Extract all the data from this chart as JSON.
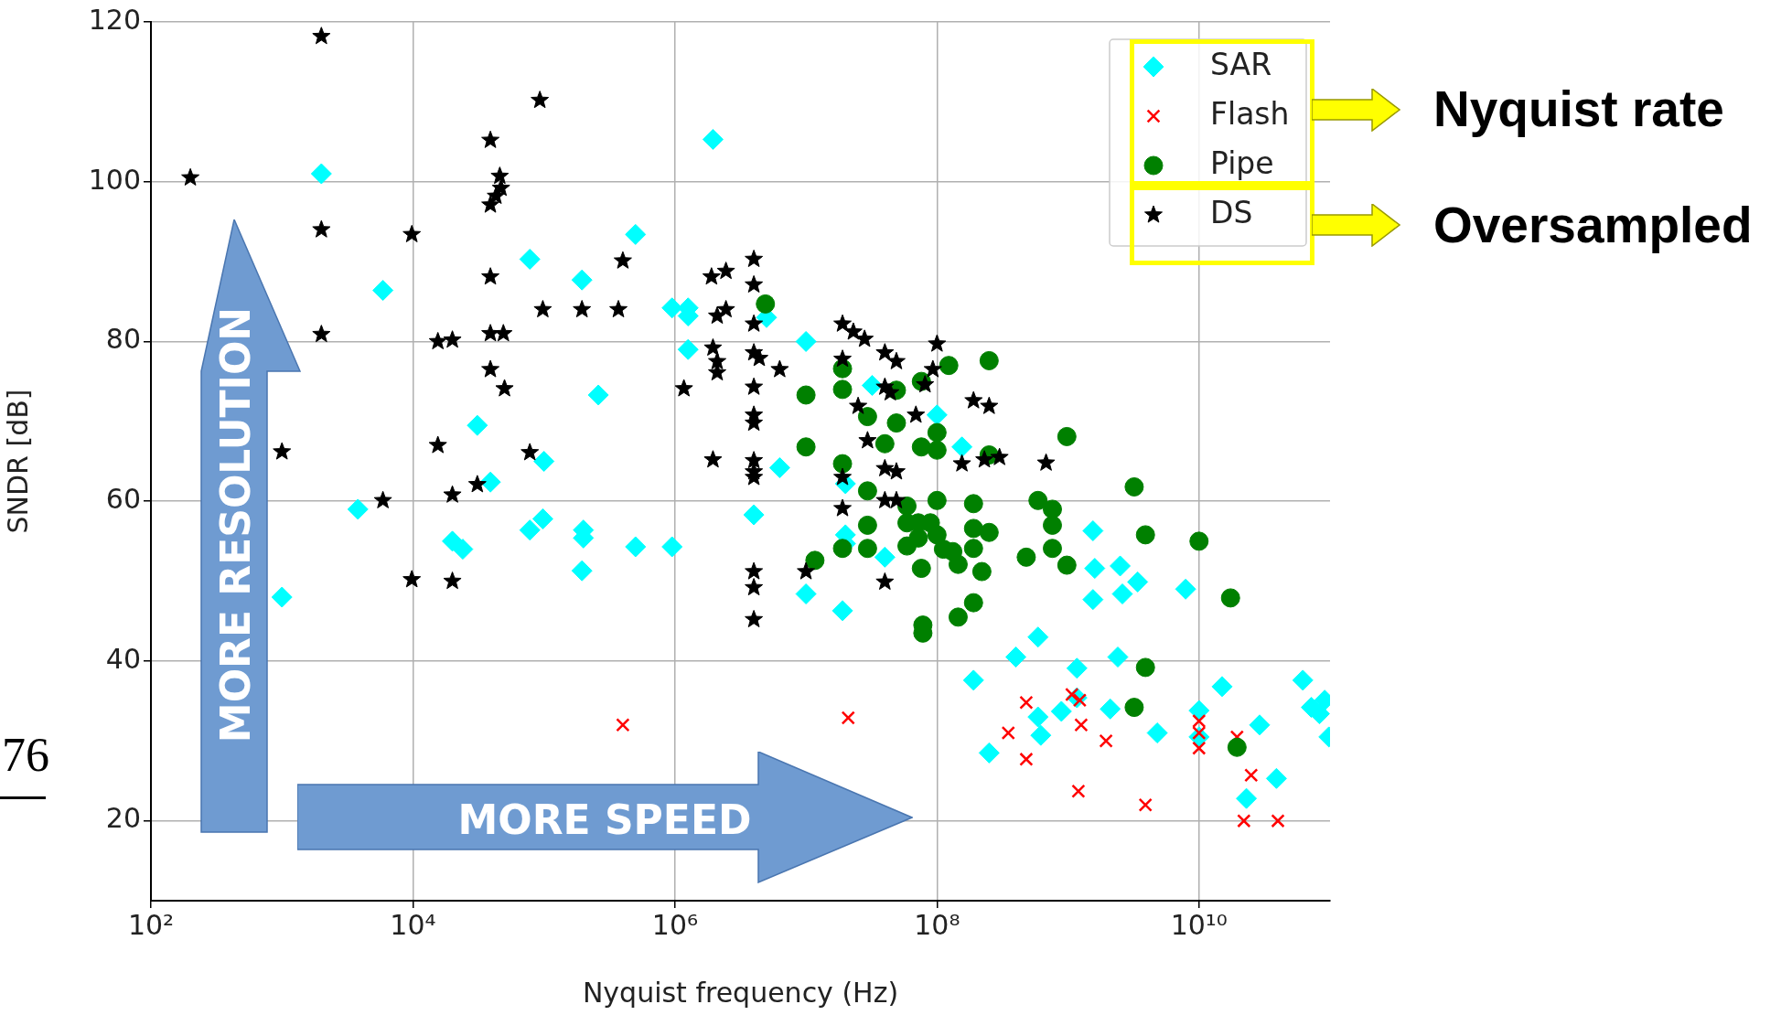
{
  "chart_data": {
    "type": "scatter",
    "xlabel": "Nyquist frequency (Hz)",
    "ylabel": "SNDR [dB]",
    "log": "x",
    "grid": true,
    "legend": "top right",
    "xlim": [
      100,
      100000000000.0
    ],
    "xticks": [
      {
        "value": 100,
        "label": "10²"
      },
      {
        "value": 10000.0,
        "label": "10⁴"
      },
      {
        "value": 1000000.0,
        "label": "10⁶"
      },
      {
        "value": 100000000.0,
        "label": "10⁸"
      },
      {
        "value": 10000000000.0,
        "label": "10¹⁰"
      }
    ],
    "ylim": [
      10,
      120
    ],
    "yticks": [
      20,
      40,
      60,
      80,
      100,
      120
    ],
    "annotations": [
      "MORE RESOLUTION",
      "MORE SPEED",
      "Nyquist rate",
      "Oversampled",
      "76"
    ],
    "series": [
      {
        "name": "SAR",
        "color": "#00ffff",
        "marker": "diamond",
        "x": [
          1000.0,
          2000.0,
          3800.0,
          5900.0,
          20000.0,
          24000.0,
          31000.0,
          39000.0,
          78000.0,
          78000.0,
          98000.0,
          100000.0,
          195000.0,
          200000.0,
          200000.0,
          195000.0,
          260000.0,
          500000.0,
          500000.0,
          950000.0,
          950000.0,
          1260000.0,
          1260000.0,
          1260000.0,
          1950000.0,
          4000000.0,
          5000000.0,
          6300000.0,
          10000000.0,
          10000000.0,
          19000000.0,
          20000000.0,
          20000000.0,
          20000000.0,
          32000000.0,
          40000000.0,
          100000000.0,
          155000000.0,
          190000000.0,
          250000000.0,
          400000000.0,
          590000000.0,
          590000000.0,
          620000000.0,
          890000000.0,
          1170000000.0,
          1170000000.0,
          1550000000.0,
          1600000000.0,
          1550000000.0,
          2400000000.0,
          2600000000.0,
          2500000000.0,
          2100000000.0,
          3400000000.0,
          4800000000.0,
          7900000000.0,
          10000000000.0,
          10000000000.0,
          15000000000.0,
          23000000000.0,
          29000000000.0,
          39000000000.0,
          62000000000.0,
          72000000000.0,
          83000000000.0,
          91000000000.0,
          98000000000.0
        ],
        "values": [
          48,
          101,
          59,
          86.4,
          55,
          54,
          69.5,
          62.4,
          90.3,
          56.4,
          57.8,
          65,
          87.7,
          56.4,
          55.4,
          51.3,
          73.3,
          93.4,
          54.3,
          54.3,
          84.2,
          84.2,
          83.2,
          79,
          105.3,
          58.3,
          83,
          64.2,
          80,
          48.4,
          46.3,
          62.2,
          55.8,
          54.7,
          74.5,
          53,
          70.8,
          66.8,
          37.6,
          28.5,
          40.5,
          43,
          33,
          30.7,
          33.7,
          39.1,
          35.4,
          56.3,
          51.6,
          47.7,
          40.5,
          48.4,
          51.9,
          34,
          49.9,
          31,
          49,
          33.8,
          30.5,
          36.8,
          22.8,
          32,
          25.3,
          37.6,
          34.2,
          33.4,
          35.1,
          30.5
        ]
      },
      {
        "name": "Flash",
        "color": "#ff0000",
        "marker": "cross",
        "x": [
          400000.0,
          21000000.0,
          350000000.0,
          480000000.0,
          480000000.0,
          1070000000.0,
          1230000000.0,
          1260000000.0,
          1200000000.0,
          1950000000.0,
          3900000000.0,
          10000000000.0,
          10000000000.0,
          10000000000.0,
          19500000000.0,
          25000000000.0,
          22000000000.0,
          40000000000.0
        ],
        "values": [
          32,
          32.9,
          31,
          34.8,
          27.7,
          35.8,
          35.1,
          32,
          23.7,
          30,
          22,
          32.5,
          31,
          29.1,
          30.5,
          25.7,
          20,
          20
        ]
      },
      {
        "name": "Pipe",
        "color": "#008000",
        "marker": "circle",
        "x": [
          4900000.0,
          10000000.0,
          10000000.0,
          11700000.0,
          19000000.0,
          19000000.0,
          19000000.0,
          19000000.0,
          29500000.0,
          29500000.0,
          29500000.0,
          29500000.0,
          40000000.0,
          49000000.0,
          49000000.0,
          59000000.0,
          59000000.0,
          59000000.0,
          72000000.0,
          72000000.0,
          76000000.0,
          76000000.0,
          78000000.0,
          78000000.0,
          76000000.0,
          89000000.0,
          100000000.0,
          100000000.0,
          100000000.0,
          100000000.0,
          123000000.0,
          112000000.0,
          132000000.0,
          145000000.0,
          145000000.0,
          190000000.0,
          190000000.0,
          190000000.0,
          190000000.0,
          220000000.0,
          250000000.0,
          250000000.0,
          250000000.0,
          480000000.0,
          590000000.0,
          760000000.0,
          760000000.0,
          760000000.0,
          980000000.0,
          980000000.0,
          3200000000.0,
          3900000000.0,
          3900000000.0,
          3200000000.0,
          10000000000.0,
          17400000000.0,
          19500000000.0
        ],
        "values": [
          84.7,
          73.3,
          66.8,
          52.6,
          76.6,
          74,
          64.7,
          54.1,
          61.3,
          57,
          54.1,
          70.6,
          67.2,
          73.9,
          69.8,
          57.3,
          54.4,
          59.4,
          57.3,
          55.4,
          75,
          66.8,
          43.5,
          44.5,
          51.6,
          57.3,
          68.6,
          66.4,
          60.1,
          55.8,
          77,
          54,
          53.7,
          52.1,
          45.5,
          59.7,
          56.6,
          54.1,
          47.3,
          51.2,
          77.6,
          56.1,
          65.8,
          53,
          60.1,
          59,
          57,
          54.1,
          68.1,
          52,
          61.8,
          55.8,
          39.2,
          34.2,
          55,
          47.9,
          29.2
        ]
      },
      {
        "name": "DS",
        "color": "#000000",
        "marker": "star",
        "x": [
          200,
          2000.0,
          2000.0,
          2000.0,
          1000.0,
          5900.0,
          9800.0,
          9800.0,
          15500.0,
          20000.0,
          15500.0,
          20000.0,
          20000.0,
          31000.0,
          39000.0,
          39000.0,
          43000.0,
          47000.0,
          46000.0,
          39000.0,
          39000.0,
          49000.0,
          39000.0,
          50000.0,
          78000.0,
          93000.0,
          98000.0,
          195000.0,
          370000.0,
          400000.0,
          1170000.0,
          1900000.0,
          2450000.0,
          2100000.0,
          2450000.0,
          1950000.0,
          2100000.0,
          2100000.0,
          1950000.0,
          4000000.0,
          4000000.0,
          4000000.0,
          4000000.0,
          4000000.0,
          4000000.0,
          4000000.0,
          4000000.0,
          4000000.0,
          4000000.0,
          4000000.0,
          4000000.0,
          4000000.0,
          4400000.0,
          6300000.0,
          10000000.0,
          19000000.0,
          23000000.0,
          28000000.0,
          19000000.0,
          25000000.0,
          19000000.0,
          19000000.0,
          40000000.0,
          49000000.0,
          40000000.0,
          44000000.0,
          29500000.0,
          40000000.0,
          49000000.0,
          40000000.0,
          49000000.0,
          40000000.0,
          69000000.0,
          81000000.0,
          93000000.0,
          100000000.0,
          190000000.0,
          250000000.0,
          155000000.0,
          230000000.0,
          300000000.0,
          680000000.0
        ],
        "values": [
          100.5,
          118.2,
          94,
          80.9,
          66.2,
          60.1,
          93.4,
          50.2,
          80,
          80.2,
          67,
          60.8,
          50,
          62.1,
          105.2,
          97.1,
          98.2,
          99.2,
          100.7,
          88.1,
          81,
          81,
          76.5,
          74.1,
          66.1,
          110.2,
          84,
          84,
          84,
          90.1,
          74.1,
          88.1,
          88.8,
          83.2,
          84,
          79.2,
          77.5,
          76.1,
          65.2,
          90.3,
          87.1,
          82.2,
          78.6,
          74.3,
          70.8,
          69.8,
          65.1,
          63.7,
          63,
          51.2,
          49.2,
          45.2,
          77.9,
          76.5,
          51.2,
          82.2,
          81.2,
          80.3,
          77.8,
          71.9,
          59.1,
          63,
          78.6,
          77.5,
          74.3,
          73.6,
          67.6,
          64.1,
          63.7,
          60.1,
          60.1,
          49.9,
          70.8,
          74.6,
          76.5,
          79.7,
          72.6,
          71.9,
          64.7,
          65.2,
          65.5,
          64.8
        ]
      }
    ]
  }
}
